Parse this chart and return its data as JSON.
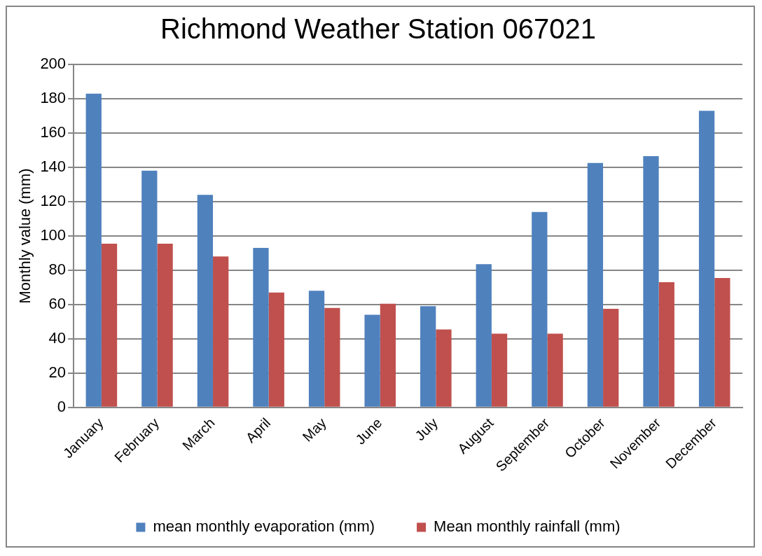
{
  "chart_data": {
    "type": "bar",
    "title": "Richmond Weather Station 067021",
    "ylabel": "Monthly value (mm)",
    "categories": [
      "January",
      "February",
      "March",
      "April",
      "May",
      "June",
      "July",
      "August",
      "September",
      "October",
      "November",
      "December"
    ],
    "series": [
      {
        "name": "mean monthly evaporation (mm)",
        "color": "#4f81bd",
        "values": [
          183,
          138,
          124,
          93,
          68,
          54,
          59,
          83.5,
          114,
          142.5,
          146.5,
          173
        ]
      },
      {
        "name": "Mean monthly rainfall (mm)",
        "color": "#c0504d",
        "values": [
          95.5,
          95.5,
          88,
          67,
          58,
          60.5,
          45.5,
          43,
          43,
          57.5,
          73,
          75.5
        ]
      }
    ],
    "ylim": [
      0,
      200
    ],
    "yticks": [
      0,
      20,
      40,
      60,
      80,
      100,
      120,
      140,
      160,
      180,
      200
    ],
    "grid": "y",
    "legend": "bottom"
  }
}
